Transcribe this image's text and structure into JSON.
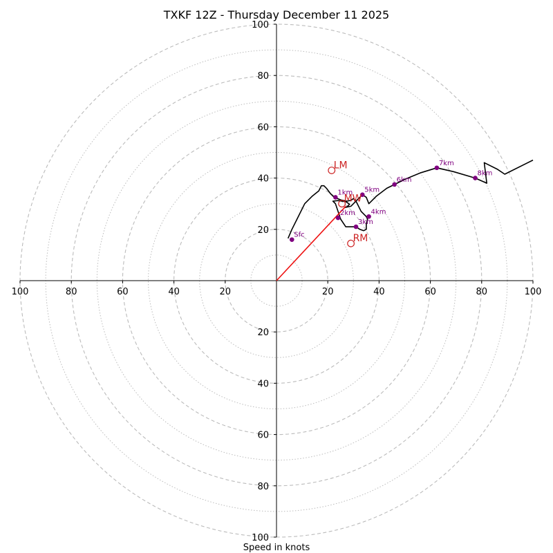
{
  "chart_data": {
    "type": "hodograph",
    "title": "TXKF 12Z - Thursday December 11 2025",
    "xlabel": "Speed in knots",
    "ylabel": "",
    "xlim": [
      -100,
      100
    ],
    "ylim": [
      -100,
      100
    ],
    "units": "knots",
    "grid": {
      "major_rings": [
        20,
        40,
        60,
        80,
        100
      ],
      "minor_rings": [
        10,
        30,
        50,
        70,
        90
      ],
      "color": "#bbbbbb"
    },
    "x_tick_labels": [
      "100",
      "80",
      "60",
      "40",
      "20",
      "20",
      "40",
      "60",
      "80",
      "100"
    ],
    "y_tick_labels": [
      "100",
      "80",
      "60",
      "40",
      "20",
      "20",
      "40",
      "60",
      "80",
      "100"
    ],
    "colors": {
      "hodograph": "#000000",
      "height_markers": "#800080",
      "motion": "#cc2222",
      "shear_vector": "#ee1111"
    },
    "hodograph_trace": [
      [
        4.5,
        16.5
      ],
      [
        6,
        20
      ],
      [
        8,
        24
      ],
      [
        11,
        30
      ],
      [
        14,
        33
      ],
      [
        16.5,
        35
      ],
      [
        17.5,
        37
      ],
      [
        18.5,
        37
      ],
      [
        19.5,
        36
      ],
      [
        21,
        34
      ],
      [
        22.5,
        32.5
      ],
      [
        25,
        31.5
      ],
      [
        27.5,
        31
      ],
      [
        29,
        31.3
      ],
      [
        30,
        32
      ],
      [
        31,
        31
      ],
      [
        33,
        27
      ],
      [
        35,
        25
      ],
      [
        35.5,
        24
      ],
      [
        35,
        22
      ],
      [
        35,
        20
      ],
      [
        34,
        19.5
      ],
      [
        32.5,
        20
      ],
      [
        31,
        21
      ],
      [
        27,
        21
      ],
      [
        25,
        24
      ],
      [
        23,
        30
      ],
      [
        22,
        31
      ],
      [
        24,
        31.2
      ],
      [
        27,
        30.8
      ],
      [
        28.5,
        29.8
      ],
      [
        27.5,
        28.8
      ],
      [
        26.5,
        28.5
      ],
      [
        29,
        29
      ],
      [
        30,
        30
      ],
      [
        31.5,
        31.5
      ],
      [
        33.5,
        33.5
      ],
      [
        35,
        32.5
      ],
      [
        36,
        30
      ],
      [
        39,
        33
      ],
      [
        43,
        36
      ],
      [
        46,
        37.5
      ],
      [
        50,
        39.5
      ],
      [
        56,
        42
      ],
      [
        62.5,
        44
      ],
      [
        69,
        42.5
      ],
      [
        77.5,
        40
      ],
      [
        82,
        38
      ],
      [
        81,
        46
      ],
      [
        86,
        43.5
      ],
      [
        89,
        41.5
      ],
      [
        100,
        47
      ]
    ],
    "height_markers": [
      {
        "label": "Sfc",
        "u": 6,
        "v": 16
      },
      {
        "label": "1km",
        "u": 23,
        "v": 32.5
      },
      {
        "label": "2km",
        "u": 24,
        "v": 24.5
      },
      {
        "label": "3km",
        "u": 31,
        "v": 21
      },
      {
        "label": "4km",
        "u": 36,
        "v": 25
      },
      {
        "label": "5km",
        "u": 33.5,
        "v": 33.5
      },
      {
        "label": "6km",
        "u": 46,
        "v": 37.5
      },
      {
        "label": "7km",
        "u": 62.5,
        "v": 44
      },
      {
        "label": "8km",
        "u": 77.5,
        "v": 40
      }
    ],
    "storm_motion": [
      {
        "label": "LM",
        "u": 21.5,
        "v": 43
      },
      {
        "label": "MW",
        "u": 25.5,
        "v": 30
      },
      {
        "label": "RM",
        "u": 29,
        "v": 14.5
      }
    ],
    "shear_vector": {
      "from": [
        0,
        0
      ],
      "to": [
        27,
        29
      ]
    }
  }
}
